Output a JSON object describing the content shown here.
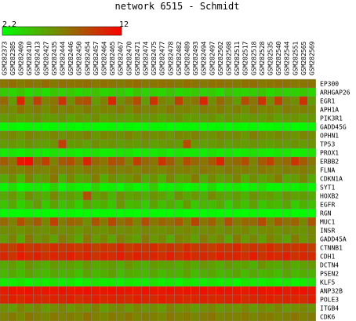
{
  "chart_data": {
    "type": "heatmap",
    "title": "network 6515 - Schmidt",
    "colorscale": {
      "min": 2.2,
      "max": 12,
      "min_label": "2.2",
      "max_label": "12",
      "low_color": "#00ff00",
      "high_color": "#ff0000"
    },
    "columns": [
      "GSM282373",
      "GSM282385",
      "GSM282409",
      "GSM282410",
      "GSM282413",
      "GSM282427",
      "GSM282435",
      "GSM282444",
      "GSM282446",
      "GSM282450",
      "GSM282454",
      "GSM282457",
      "GSM282464",
      "GSM282465",
      "GSM282467",
      "GSM282470",
      "GSM282471",
      "GSM282474",
      "GSM282475",
      "GSM282477",
      "GSM282478",
      "GSM282482",
      "GSM282489",
      "GSM282493",
      "GSM282494",
      "GSM282497",
      "GSM282502",
      "GSM282508",
      "GSM282511",
      "GSM282517",
      "GSM282518",
      "GSM282528",
      "GSM282535",
      "GSM282540",
      "GSM282544",
      "GSM282551",
      "GSM282565",
      "GSM282569"
    ],
    "rows": [
      "EP300",
      "ARHGAP26",
      "EGR1",
      "APH1A",
      "PIK3R1",
      "GADD45G",
      "OPHN1",
      "TP53",
      "PROX1",
      "ERBB2",
      "FLNA",
      "CDKN1A",
      "SYT1",
      "HOXB2",
      "EGFR",
      "RGN",
      "MUC1",
      "INSR",
      "GADD45A",
      "CTNNB1",
      "CDH1",
      "DCTN4",
      "PSEN2",
      "KLF5",
      "ANP32B",
      "POLE3",
      "ITGB4",
      "CDK6"
    ],
    "values": [
      [
        7.5,
        7.8,
        7.2,
        7.6,
        7.4,
        7.9,
        7.3,
        7.7,
        7.5,
        7.6,
        7.8,
        7.4,
        7.7,
        7.5,
        7.3,
        7.6,
        7.9,
        7.4,
        7.5,
        7.7,
        7.6,
        7.3,
        7.8,
        7.5,
        7.4,
        7.6,
        7.7,
        7.5,
        7.3,
        7.6,
        7.8,
        7.4,
        7.5,
        7.7,
        7.6,
        7.4,
        7.5,
        7.6
      ],
      [
        4.2,
        3.8,
        4.5,
        3.6,
        4.0,
        3.5,
        4.4,
        3.9,
        4.3,
        3.7,
        4.1,
        4.6,
        3.8,
        4.0,
        4.2,
        3.6,
        4.5,
        3.9,
        4.1,
        3.8,
        4.4,
        3.7,
        4.0,
        4.3,
        3.9,
        4.2,
        3.6,
        4.5,
        4.0,
        3.8,
        4.1,
        4.4,
        3.7,
        4.2,
        3.9,
        4.0,
        4.3,
        3.8
      ],
      [
        8.0,
        6.0,
        10.5,
        6.5,
        9.5,
        7.0,
        7.5,
        10.0,
        6.5,
        8.5,
        9.0,
        6.0,
        7.0,
        10.5,
        6.5,
        7.5,
        9.0,
        6.0,
        10.0,
        7.0,
        6.5,
        9.5,
        7.0,
        7.5,
        10.5,
        6.5,
        8.0,
        7.0,
        6.0,
        9.0,
        7.5,
        10.0,
        6.5,
        9.5,
        7.0,
        6.5,
        10.0,
        6.0
      ],
      [
        7.0,
        6.5,
        7.5,
        6.8,
        7.2,
        6.6,
        7.4,
        6.9,
        7.1,
        6.7,
        7.3,
        6.5,
        7.0,
        6.8,
        7.2,
        6.6,
        7.5,
        6.9,
        7.1,
        6.7,
        7.4,
        6.8,
        7.0,
        6.6,
        7.2,
        6.9,
        7.3,
        6.7,
        7.1,
        6.5,
        7.4,
        6.8,
        7.0,
        6.6,
        7.2,
        6.9,
        7.1,
        6.7
      ],
      [
        6.0,
        6.3,
        5.8,
        6.2,
        6.5,
        5.9,
        6.1,
        6.4,
        5.7,
        6.3,
        6.0,
        6.6,
        5.8,
        6.2,
        6.1,
        5.9,
        6.4,
        6.0,
        6.3,
        5.7,
        6.2,
        6.5,
        5.9,
        6.1,
        6.0,
        6.4,
        5.8,
        6.3,
        6.1,
        5.9,
        6.2,
        6.0,
        6.5,
        5.8,
        6.1,
        6.3,
        5.9,
        6.2
      ],
      [
        2.4,
        2.5,
        2.3,
        2.6,
        2.4,
        2.3,
        2.5,
        2.4,
        2.6,
        2.3,
        2.5,
        2.4,
        2.3,
        2.6,
        2.4,
        2.5,
        2.3,
        2.4,
        2.6,
        2.5,
        2.3,
        2.4,
        2.5,
        2.6,
        2.3,
        2.4,
        2.5,
        2.3,
        2.6,
        2.4,
        2.5,
        2.3,
        2.4,
        2.6,
        2.5,
        2.3,
        2.4,
        2.5
      ],
      [
        6.5,
        6.8,
        6.2,
        7.0,
        6.6,
        6.4,
        6.9,
        6.3,
        6.7,
        6.5,
        7.1,
        6.2,
        6.8,
        6.6,
        6.4,
        7.0,
        6.3,
        6.9,
        6.5,
        6.7,
        6.2,
        6.8,
        6.6,
        7.0,
        6.4,
        6.3,
        6.9,
        6.5,
        6.7,
        6.2,
        7.1,
        6.6,
        6.4,
        6.8,
        6.5,
        6.3,
        6.9,
        6.6
      ],
      [
        6.0,
        6.2,
        5.8,
        6.4,
        6.1,
        5.9,
        6.3,
        9.5,
        6.0,
        6.2,
        5.8,
        6.5,
        6.1,
        6.3,
        5.9,
        6.2,
        6.0,
        6.4,
        5.8,
        6.1,
        6.3,
        6.0,
        9.0,
        6.2,
        5.9,
        6.1,
        6.4,
        5.8,
        6.2,
        6.0,
        6.3,
        6.1,
        5.9,
        6.2,
        6.0,
        6.4,
        6.1,
        6.3
      ],
      [
        3.0,
        3.2,
        2.8,
        3.3,
        3.1,
        2.9,
        3.4,
        3.0,
        3.2,
        2.8,
        3.1,
        3.3,
        2.9,
        3.0,
        3.2,
        3.4,
        2.8,
        3.1,
        3.0,
        3.3,
        2.9,
        3.2,
        3.0,
        3.1,
        2.8,
        3.3,
        3.0,
        3.2,
        2.9,
        3.1,
        3.4,
        3.0,
        2.8,
        3.2,
        3.1,
        2.9,
        3.0,
        3.3
      ],
      [
        8.5,
        7.5,
        11.0,
        11.5,
        8.0,
        9.5,
        7.0,
        8.5,
        9.0,
        7.5,
        10.5,
        8.0,
        7.5,
        9.0,
        8.5,
        7.0,
        9.5,
        8.0,
        7.5,
        10.0,
        8.5,
        7.0,
        9.0,
        8.0,
        7.5,
        8.5,
        10.5,
        7.5,
        8.0,
        9.0,
        7.0,
        8.5,
        9.5,
        7.5,
        8.0,
        10.0,
        8.5,
        7.5
      ],
      [
        7.0,
        7.3,
        6.8,
        7.5,
        7.1,
        6.9,
        7.4,
        7.0,
        7.2,
        6.7,
        7.3,
        7.1,
        6.9,
        7.5,
        7.0,
        7.2,
        6.8,
        7.4,
        7.1,
        6.9,
        7.3,
        7.0,
        7.2,
        6.8,
        7.5,
        7.1,
        6.9,
        7.3,
        7.0,
        7.2,
        6.8,
        7.4,
        7.1,
        6.9,
        7.2,
        7.0,
        7.3,
        6.8
      ],
      [
        5.5,
        6.5,
        5.0,
        7.0,
        5.8,
        6.2,
        7.5,
        5.3,
        6.8,
        5.7,
        6.0,
        7.2,
        5.4,
        6.6,
        5.9,
        6.3,
        7.1,
        5.6,
        6.4,
        5.2,
        6.9,
        5.8,
        6.1,
        7.3,
        5.5,
        6.7,
        5.9,
        6.2,
        7.0,
        5.4,
        6.5,
        5.7,
        6.3,
        7.2,
        5.6,
        6.0,
        6.8,
        5.5
      ],
      [
        2.5,
        3.5,
        2.3,
        2.8,
        3.0,
        2.6,
        4.0,
        2.4,
        3.2,
        2.7,
        2.5,
        3.8,
        2.6,
        2.9,
        2.4,
        3.3,
        2.5,
        2.8,
        4.2,
        2.6,
        2.7,
        3.1,
        2.4,
        2.9,
        2.6,
        3.6,
        2.5,
        2.7,
        3.0,
        2.4,
        2.8,
        3.4,
        2.5,
        2.6,
        2.9,
        2.7,
        3.2,
        2.5
      ],
      [
        5.5,
        6.2,
        5.0,
        6.5,
        5.8,
        5.2,
        6.8,
        5.6,
        6.0,
        5.3,
        9.0,
        5.9,
        6.4,
        5.1,
        6.6,
        5.7,
        6.1,
        5.4,
        6.3,
        5.8,
        5.0,
        6.5,
        5.6,
        6.2,
        5.3,
        6.7,
        5.9,
        5.5,
        6.0,
        5.2,
        6.4,
        5.7,
        6.1,
        5.4,
        6.3,
        5.8,
        6.0,
        5.5
      ],
      [
        4.5,
        5.5,
        4.0,
        5.0,
        6.0,
        4.3,
        5.8,
        4.6,
        5.2,
        4.1,
        5.6,
        4.8,
        5.3,
        4.4,
        6.2,
        4.9,
        5.1,
        4.2,
        5.7,
        4.7,
        5.4,
        4.5,
        6.0,
        4.3,
        5.0,
        4.8,
        5.5,
        4.1,
        5.3,
        4.6,
        5.8,
        4.4,
        5.1,
        4.9,
        5.6,
        4.2,
        5.2,
        4.7
      ],
      [
        2.3,
        2.4,
        2.3,
        2.5,
        2.3,
        2.4,
        2.3,
        2.4,
        2.5,
        2.3,
        2.4,
        2.3,
        2.5,
        2.4,
        2.3,
        2.4,
        2.3,
        2.5,
        2.4,
        2.3,
        2.4,
        2.5,
        2.3,
        2.4,
        2.3,
        2.5,
        2.4,
        2.3,
        2.4,
        2.3,
        2.5,
        2.4,
        2.3,
        2.4,
        2.5,
        2.3,
        2.4,
        2.3
      ],
      [
        8.0,
        7.0,
        9.0,
        7.5,
        8.5,
        6.8,
        9.5,
        7.2,
        8.2,
        7.8,
        6.5,
        8.8,
        7.3,
        9.2,
        7.6,
        8.4,
        6.9,
        9.0,
        7.4,
        8.1,
        7.7,
        8.6,
        7.1,
        9.3,
        7.5,
        8.3,
        6.7,
        8.9,
        7.2,
        8.0,
        7.9,
        9.1,
        7.0,
        8.5,
        7.6,
        8.2,
        6.8,
        8.7
      ],
      [
        6.5,
        6.7,
        6.3,
        6.8,
        6.6,
        6.4,
        6.9,
        6.5,
        6.7,
        6.2,
        6.8,
        6.6,
        6.4,
        6.9,
        6.5,
        6.7,
        6.3,
        6.8,
        6.6,
        6.4,
        6.7,
        6.5,
        6.9,
        6.3,
        6.6,
        6.8,
        6.4,
        6.7,
        6.5,
        6.9,
        6.2,
        6.6,
        6.8,
        6.4,
        6.7,
        6.5,
        6.3,
        6.8
      ],
      [
        6.0,
        7.0,
        5.5,
        7.5,
        6.3,
        6.8,
        5.8,
        7.2,
        6.5,
        5.6,
        7.4,
        6.1,
        6.9,
        5.7,
        7.1,
        6.4,
        5.9,
        7.3,
        6.2,
        6.7,
        5.5,
        7.0,
        6.6,
        5.8,
        7.2,
        6.3,
        6.9,
        5.6,
        7.4,
        6.1,
        6.8,
        5.9,
        7.1,
        6.4,
        5.7,
        7.3,
        6.2,
        6.7
      ],
      [
        10.0,
        9.5,
        10.5,
        9.8,
        10.2,
        9.6,
        10.4,
        9.9,
        10.1,
        9.7,
        10.3,
        9.5,
        10.0,
        9.8,
        10.5,
        9.6,
        10.2,
        9.9,
        10.4,
        9.7,
        10.1,
        9.5,
        10.3,
        9.8,
        10.0,
        9.6,
        10.2,
        9.9,
        10.5,
        9.7,
        10.1,
        9.8,
        10.4,
        9.6,
        10.0,
        9.9,
        10.3,
        9.7
      ],
      [
        10.5,
        10.0,
        11.0,
        10.3,
        10.8,
        10.1,
        10.6,
        10.4,
        10.9,
        10.2,
        10.7,
        10.0,
        10.5,
        10.3,
        11.0,
        10.1,
        10.8,
        10.4,
        10.6,
        10.2,
        10.9,
        10.0,
        10.7,
        10.3,
        10.5,
        10.1,
        10.8,
        10.4,
        10.6,
        10.2,
        11.0,
        10.0,
        10.7,
        10.3,
        10.9,
        10.1,
        10.5,
        10.4
      ],
      [
        5.5,
        6.0,
        5.2,
        6.3,
        5.7,
        5.4,
        6.1,
        5.6,
        5.9,
        5.3,
        6.2,
        5.5,
        5.8,
        6.0,
        5.4,
        6.3,
        5.6,
        5.2,
        6.1,
        5.7,
        5.9,
        5.3,
        6.0,
        5.5,
        6.2,
        5.8,
        5.4,
        6.1,
        5.6,
        5.9,
        5.2,
        6.3,
        5.7,
        5.5,
        6.0,
        5.4,
        5.8,
        6.1
      ],
      [
        5.0,
        5.5,
        4.8,
        5.8,
        5.2,
        4.9,
        5.6,
        5.1,
        5.4,
        4.7,
        5.7,
        5.0,
        5.3,
        5.9,
        4.8,
        5.5,
        5.2,
        5.0,
        5.6,
        4.9,
        5.4,
        5.1,
        5.8,
        4.8,
        5.3,
        5.6,
        5.0,
        5.2,
        5.7,
        4.9,
        5.5,
        5.1,
        5.3,
        4.8,
        5.6,
        5.0,
        5.4,
        5.2
      ],
      [
        3.0,
        2.8,
        3.3,
        2.7,
        3.1,
        2.9,
        3.4,
        2.8,
        3.2,
        2.6,
        3.0,
        3.3,
        2.9,
        3.1,
        2.7,
        3.2,
        3.0,
        2.8,
        3.4,
        2.9,
        3.1,
        2.7,
        3.3,
        3.0,
        2.8,
        3.2,
        2.9,
        3.1,
        2.6,
        3.3,
        3.0,
        2.8,
        3.2,
        2.9,
        3.1,
        2.7,
        3.0,
        3.3
      ],
      [
        11.0,
        11.2,
        11.1,
        11.3,
        11.0,
        11.2,
        11.1,
        11.3,
        11.0,
        11.2,
        11.4,
        11.1,
        11.0,
        11.3,
        11.2,
        11.1,
        11.0,
        11.4,
        11.2,
        11.1,
        11.3,
        11.0,
        11.2,
        11.1,
        11.4,
        11.0,
        11.3,
        11.2,
        11.1,
        11.0,
        11.3,
        11.2,
        11.1,
        11.4,
        11.0,
        11.2,
        11.3,
        11.1
      ],
      [
        10.5,
        10.8,
        10.3,
        10.9,
        10.6,
        10.4,
        10.7,
        10.5,
        10.8,
        10.2,
        10.6,
        10.9,
        10.4,
        10.7,
        10.5,
        10.3,
        10.8,
        10.6,
        10.4,
        10.9,
        10.5,
        10.7,
        10.3,
        10.6,
        10.8,
        10.4,
        10.5,
        10.7,
        10.9,
        10.3,
        10.6,
        10.5,
        10.8,
        10.4,
        10.7,
        10.6,
        10.3,
        10.9
      ],
      [
        6.5,
        6.0,
        7.0,
        6.3,
        6.8,
        6.1,
        6.6,
        6.9,
        6.2,
        6.7,
        6.4,
        7.1,
        6.0,
        6.5,
        6.8,
        6.2,
        6.9,
        6.3,
        6.6,
        6.1,
        7.0,
        6.4,
        6.7,
        6.0,
        6.5,
        6.8,
        6.2,
        6.6,
        6.3,
        6.9,
        6.1,
        6.7,
        6.4,
        7.0,
        6.2,
        6.5,
        6.8,
        6.3
      ],
      [
        7.0,
        7.3,
        6.7,
        7.5,
        7.1,
        6.8,
        7.4,
        7.0,
        7.2,
        6.9,
        7.6,
        7.1,
        6.8,
        7.3,
        7.0,
        7.5,
        6.9,
        7.2,
        7.1,
        6.7,
        7.4,
        7.0,
        7.3,
        6.8,
        7.2,
        7.5,
        6.9,
        7.1,
        7.0,
        7.4,
        6.8,
        7.2,
        7.3,
        6.9,
        7.1,
        7.5,
        7.0,
        7.2
      ]
    ]
  }
}
